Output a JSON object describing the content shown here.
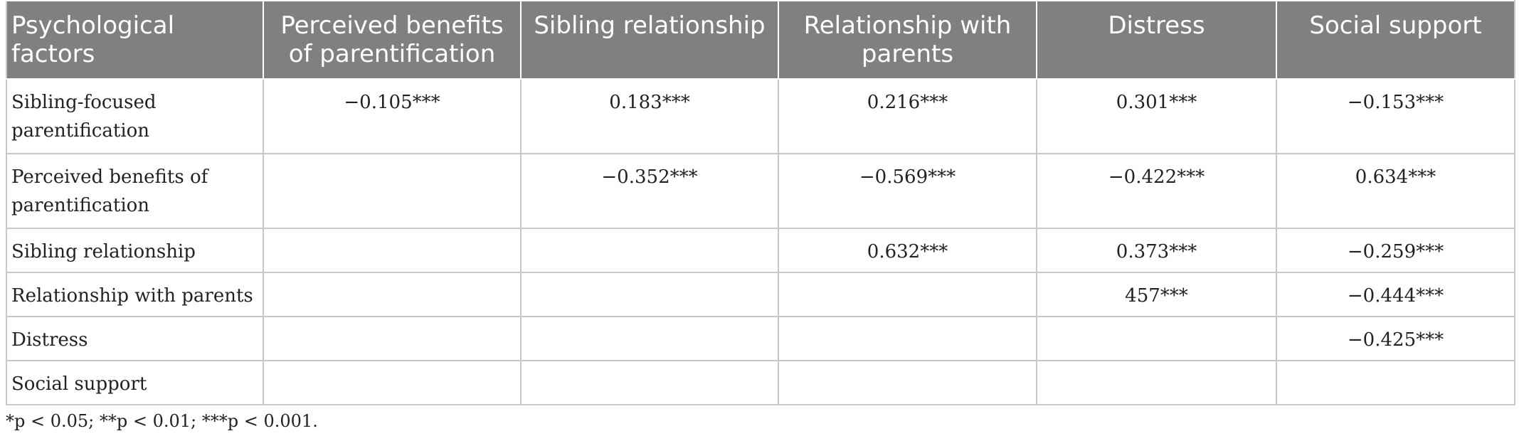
{
  "table": {
    "headers": [
      "Psychological factors",
      "Perceived benefits of parentification",
      "Sibling relationship",
      "Relationship with parents",
      "Distress",
      "Social support"
    ],
    "rows": [
      {
        "label": "Sibling-focused parentification",
        "cells": [
          "−0.105***",
          "0.183***",
          "0.216***",
          "0.301***",
          "−0.153***"
        ]
      },
      {
        "label": "Perceived benefits of parentification",
        "cells": [
          "",
          "−0.352***",
          "−0.569***",
          "−0.422***",
          "0.634***"
        ]
      },
      {
        "label": "Sibling relationship",
        "cells": [
          "",
          "",
          "0.632***",
          "0.373***",
          "−0.259***"
        ]
      },
      {
        "label": "Relationship with parents",
        "cells": [
          "",
          "",
          "",
          "457***",
          "−0.444***"
        ]
      },
      {
        "label": "Distress",
        "cells": [
          "",
          "",
          "",
          "",
          "−0.425***"
        ]
      },
      {
        "label": "Social support",
        "cells": [
          "",
          "",
          "",
          "",
          ""
        ]
      }
    ]
  },
  "footnote": "*p < 0.05; **p < 0.01; ***p < 0.001."
}
